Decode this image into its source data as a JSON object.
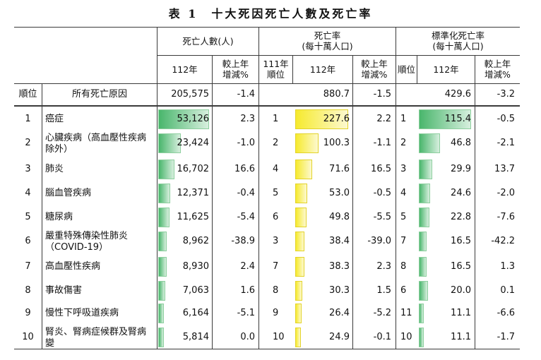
{
  "title": "表 1　十大死因死亡人數及死亡率",
  "headers": {
    "deaths": "死亡人數(人)",
    "rate_l1": "死亡率",
    "rate_l2": "(每十萬人口)",
    "std_l1": "標準化死亡率",
    "std_l2": "(每十萬人口)",
    "year112": "112年",
    "change_l1": "較上年",
    "change_l2": "增減%",
    "rank111_l1": "111年",
    "rank111_l2": "順位",
    "rank": "順位"
  },
  "total": {
    "rank": "順位",
    "cause": "所有死亡原因",
    "deaths": "205,575",
    "deaths_change": "-1.4",
    "rate": "880.7",
    "rate_change": "-1.5",
    "std": "429.6",
    "std_change": "-3.2"
  },
  "rows": [
    {
      "rank": "1",
      "cause": "癌症",
      "deaths": "53,126",
      "deaths_change": "2.3",
      "rate_rank111": "1",
      "rate": "227.6",
      "rate_change": "2.2",
      "std_rank": "1",
      "std": "115.4",
      "std_change": "-0.5"
    },
    {
      "rank": "2",
      "cause": "心臟疾病（高血壓性疾病除外）",
      "deaths": "23,424",
      "deaths_change": "-1.0",
      "rate_rank111": "2",
      "rate": "100.3",
      "rate_change": "-1.1",
      "std_rank": "2",
      "std": "46.8",
      "std_change": "-2.1"
    },
    {
      "rank": "3",
      "cause": "肺炎",
      "deaths": "16,702",
      "deaths_change": "16.6",
      "rate_rank111": "4",
      "rate": "71.6",
      "rate_change": "16.5",
      "std_rank": "3",
      "std": "29.9",
      "std_change": "13.7"
    },
    {
      "rank": "4",
      "cause": "腦血管疾病",
      "deaths": "12,371",
      "deaths_change": "-0.4",
      "rate_rank111": "5",
      "rate": "53.0",
      "rate_change": "-0.5",
      "std_rank": "4",
      "std": "24.6",
      "std_change": "-2.0"
    },
    {
      "rank": "5",
      "cause": "糖尿病",
      "deaths": "11,625",
      "deaths_change": "-5.4",
      "rate_rank111": "6",
      "rate": "49.8",
      "rate_change": "-5.5",
      "std_rank": "5",
      "std": "22.8",
      "std_change": "-7.6"
    },
    {
      "rank": "6",
      "cause": "嚴重特殊傳染性肺炎（COVID-19）",
      "deaths": "8,962",
      "deaths_change": "-38.9",
      "rate_rank111": "3",
      "rate": "38.4",
      "rate_change": "-39.0",
      "std_rank": "7",
      "std": "16.5",
      "std_change": "-42.2"
    },
    {
      "rank": "7",
      "cause": "高血壓性疾病",
      "deaths": "8,930",
      "deaths_change": "2.4",
      "rate_rank111": "7",
      "rate": "38.3",
      "rate_change": "2.3",
      "std_rank": "8",
      "std": "16.5",
      "std_change": "1.3"
    },
    {
      "rank": "8",
      "cause": "事故傷害",
      "deaths": "7,063",
      "deaths_change": "1.6",
      "rate_rank111": "8",
      "rate": "30.3",
      "rate_change": "1.5",
      "std_rank": "6",
      "std": "20.0",
      "std_change": "0.1"
    },
    {
      "rank": "9",
      "cause": "慢性下呼吸道疾病",
      "deaths": "6,164",
      "deaths_change": "-5.1",
      "rate_rank111": "9",
      "rate": "26.4",
      "rate_change": "-5.2",
      "std_rank": "11",
      "std": "11.1",
      "std_change": "-6.6"
    },
    {
      "rank": "10",
      "cause": "腎炎、腎病症候群及腎病變",
      "deaths": "5,814",
      "deaths_change": "0.0",
      "rate_rank111": "10",
      "rate": "24.9",
      "rate_change": "-0.1",
      "std_rank": "10",
      "std": "11.1",
      "std_change": "-1.7"
    }
  ],
  "colors": {
    "deaths_bar": "#49b66c",
    "rate_bar": "#f6ea2e",
    "std_bar": "#49b66c"
  }
}
